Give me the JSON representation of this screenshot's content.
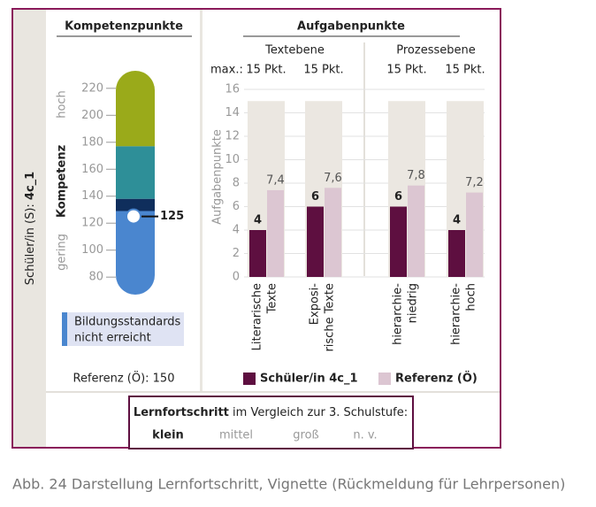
{
  "side_label": {
    "prefix": "Schüler/in (S):",
    "id": "4c_1"
  },
  "chart_data": [
    {
      "type": "scale",
      "title": "Kompetenzpunkte",
      "ylabel": "Kompetenz",
      "high_label": "hoch",
      "low_label": "gering",
      "ylim": [
        67,
        233
      ],
      "yticks": [
        80,
        100,
        120,
        140,
        160,
        180,
        200,
        220
      ],
      "bands": [
        {
          "from": 177,
          "to": 233,
          "color": "#9aaa1a"
        },
        {
          "from": 138,
          "to": 177,
          "color": "#2e8f98"
        },
        {
          "from": 129,
          "to": 138,
          "color": "#0f2e5c"
        },
        {
          "from": 67,
          "to": 129,
          "color": "#4a86cf"
        }
      ],
      "marker": 125,
      "note": {
        "lines": [
          "Bildungsstandards",
          "nicht erreicht"
        ],
        "color": "#4a86cf"
      },
      "reference": "Referenz (Ö): 150"
    },
    {
      "type": "bar",
      "title": "Aufgabenpunkte",
      "ylabel": "Aufgabenpunkte",
      "max_prefix": "max.:",
      "groups": [
        {
          "name": "Textebene",
          "categories": [
            [
              "Literarische",
              "Texte"
            ],
            [
              "Exposi-",
              "rische Texte"
            ]
          ]
        },
        {
          "name": "Prozessebene",
          "categories": [
            [
              "hierarchie-",
              "niedrig"
            ],
            [
              "hierarchie-",
              "hoch"
            ]
          ]
        }
      ],
      "max": {
        "values": [
          15,
          15,
          15,
          15
        ],
        "value_labels": [
          "15 Pkt.",
          "15 Pkt.",
          "15 Pkt.",
          "15 Pkt."
        ],
        "color": "#ebe7e1"
      },
      "series": [
        {
          "name": "Schüler/in 4c_1",
          "color": "#5e0f40",
          "values": [
            4,
            6,
            6,
            4
          ]
        },
        {
          "name": "Referenz (Ö)",
          "color": "#dcc6d2",
          "values": [
            7.4,
            7.6,
            7.8,
            7.2
          ],
          "value_labels": [
            "7,4",
            "7,6",
            "7,8",
            "7,2"
          ]
        }
      ],
      "ylim": [
        0,
        16
      ],
      "yticks": [
        0,
        2,
        4,
        6,
        8,
        10,
        12,
        14,
        16
      ],
      "grid": true
    }
  ],
  "progress": {
    "title_bold": "Lernfortschritt",
    "title_rest": "im Vergleich zur 3. Schulstufe:",
    "options": [
      "klein",
      "mittel",
      "groß",
      "n. v."
    ],
    "selected": "klein"
  },
  "caption": "Abb. 24  Darstellung Lernfortschritt, Vignette (Rückmeldung für Lehrpersonen)"
}
